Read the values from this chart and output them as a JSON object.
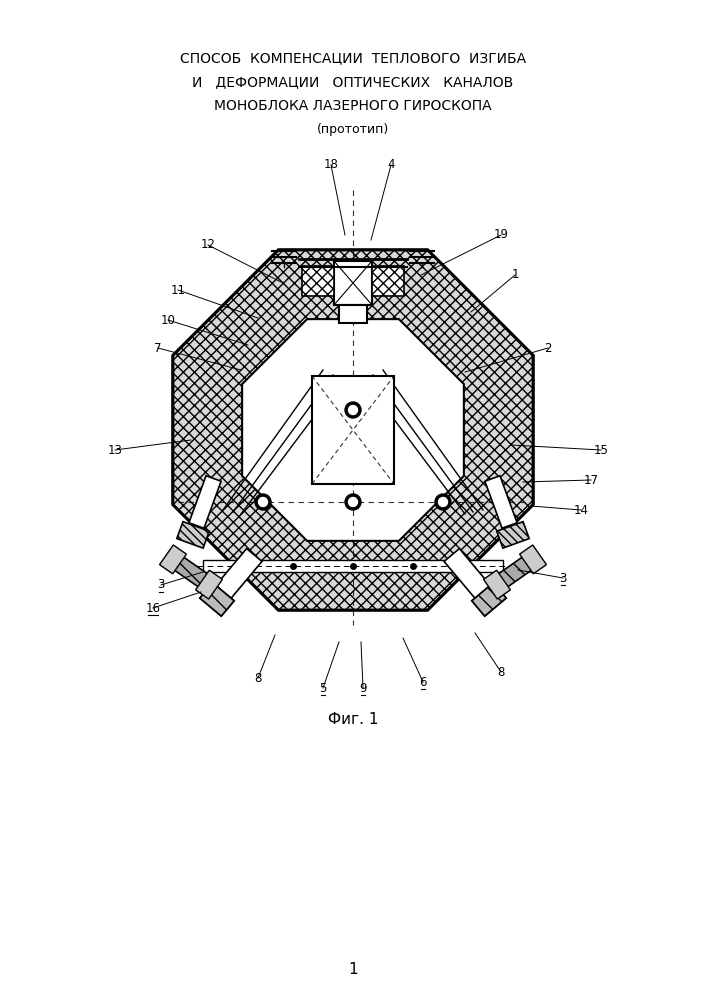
{
  "title_line1": "СПОСОБ  КОМПЕНСАЦИИ  ТЕПЛОВОГО  ИЗГИБА",
  "title_line2": "И   ДЕФОРМАЦИИ   ОПТИЧЕСКИХ   КАНАЛОВ",
  "title_line3": "МОНОБЛОКА ЛАЗЕРНОГО ГИРОСКОПА",
  "subtitle": "(прототип)",
  "fig_label": "Фиг. 1",
  "page_number": "1",
  "bg_color": "#ffffff"
}
